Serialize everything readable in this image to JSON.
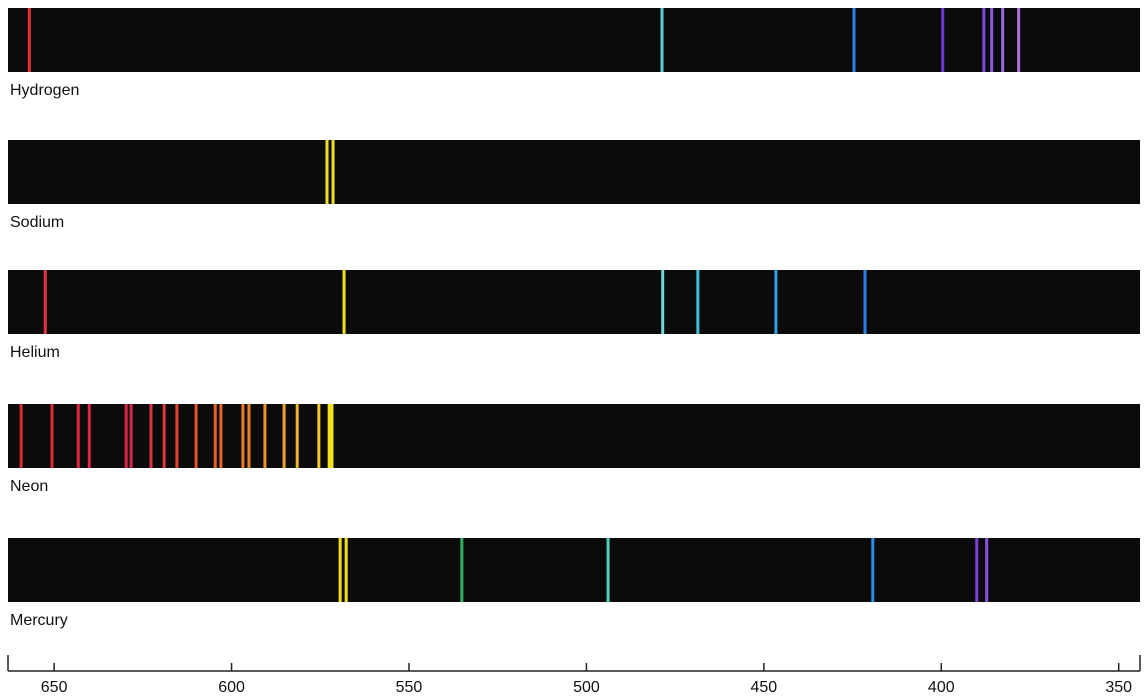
{
  "chart_data": {
    "type": "spectrum",
    "xlim": [
      663,
      344
    ],
    "xticks": [
      650,
      600,
      550,
      500,
      450,
      400,
      350
    ],
    "series": [
      {
        "name": "Hydrogen",
        "values": [
          657,
          478.7,
          424.6,
          399.6,
          388,
          385.8,
          382.7,
          378.2
        ],
        "colors": [
          "#e8303a",
          "#5ad0d0",
          "#2a7fe0",
          "#6a3bd0",
          "#7a4ad8",
          "#8a5ae0",
          "#9a6ae0",
          "#b070d8"
        ]
      },
      {
        "name": "Sodium",
        "values": [
          573.1,
          571.4
        ],
        "colors": [
          "#f0e020",
          "#f0e020"
        ]
      },
      {
        "name": "Helium",
        "values": [
          652.5,
          568.3,
          478.5,
          468.6,
          446.6,
          421.5
        ],
        "colors": [
          "#e83040",
          "#f0e020",
          "#70d8d8",
          "#40c0e0",
          "#30a0e8",
          "#2a80e8"
        ]
      },
      {
        "name": "Neon",
        "values": [
          659.3,
          650.6,
          643.2,
          640.1,
          629.7,
          628.3,
          622.7,
          619,
          615.4,
          610,
          604.6,
          603,
          596.8,
          595.1,
          590.6,
          585.2,
          581.5,
          575.4,
          572.5,
          571.7
        ],
        "colors": [
          "#e02838",
          "#e02838",
          "#e02840",
          "#e02840",
          "#d82848",
          "#d82848",
          "#e03040",
          "#e03838",
          "#e84030",
          "#e85030",
          "#e86028",
          "#e86828",
          "#f07828",
          "#f08028",
          "#f09028",
          "#f0a030",
          "#f0b030",
          "#f0c828",
          "#f0e020",
          "#f0e020"
        ]
      },
      {
        "name": "Mercury",
        "values": [
          569.4,
          567.7,
          535.1,
          493.9,
          419.3,
          390,
          387.2
        ],
        "colors": [
          "#f0e020",
          "#f0e020",
          "#30b060",
          "#50d0c0",
          "#2a90f0",
          "#7a40d8",
          "#8a50e0"
        ]
      }
    ]
  }
}
